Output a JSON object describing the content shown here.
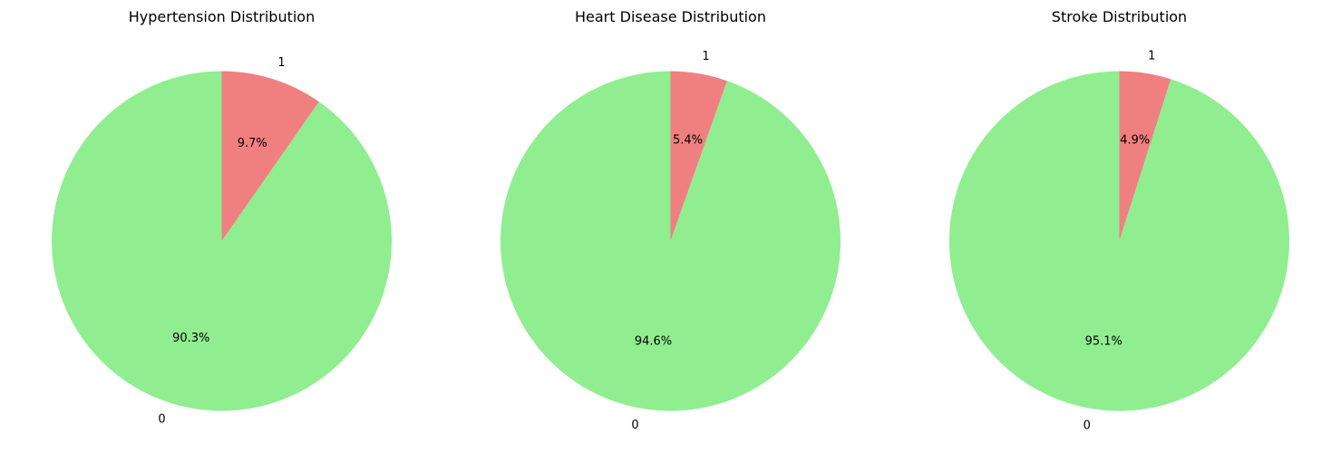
{
  "chart_data": [
    {
      "type": "pie",
      "title": "Hypertension Distribution",
      "categories": [
        "0",
        "1"
      ],
      "values": [
        90.3,
        9.7
      ],
      "labels": [
        "90.3%",
        "9.7%"
      ],
      "colors": [
        "#90ee90",
        "#f08080"
      ],
      "start_angle": "top, counterclockwise",
      "legend": "none"
    },
    {
      "type": "pie",
      "title": "Heart Disease Distribution",
      "categories": [
        "0",
        "1"
      ],
      "values": [
        94.6,
        5.4
      ],
      "labels": [
        "94.6%",
        "5.4%"
      ],
      "colors": [
        "#90ee90",
        "#f08080"
      ],
      "start_angle": "top, counterclockwise",
      "legend": "none"
    },
    {
      "type": "pie",
      "title": "Stroke Distribution",
      "categories": [
        "0",
        "1"
      ],
      "values": [
        95.1,
        4.9
      ],
      "labels": [
        "95.1%",
        "4.9%"
      ],
      "colors": [
        "#90ee90",
        "#f08080"
      ],
      "start_angle": "top, counterclockwise",
      "legend": "none"
    }
  ]
}
